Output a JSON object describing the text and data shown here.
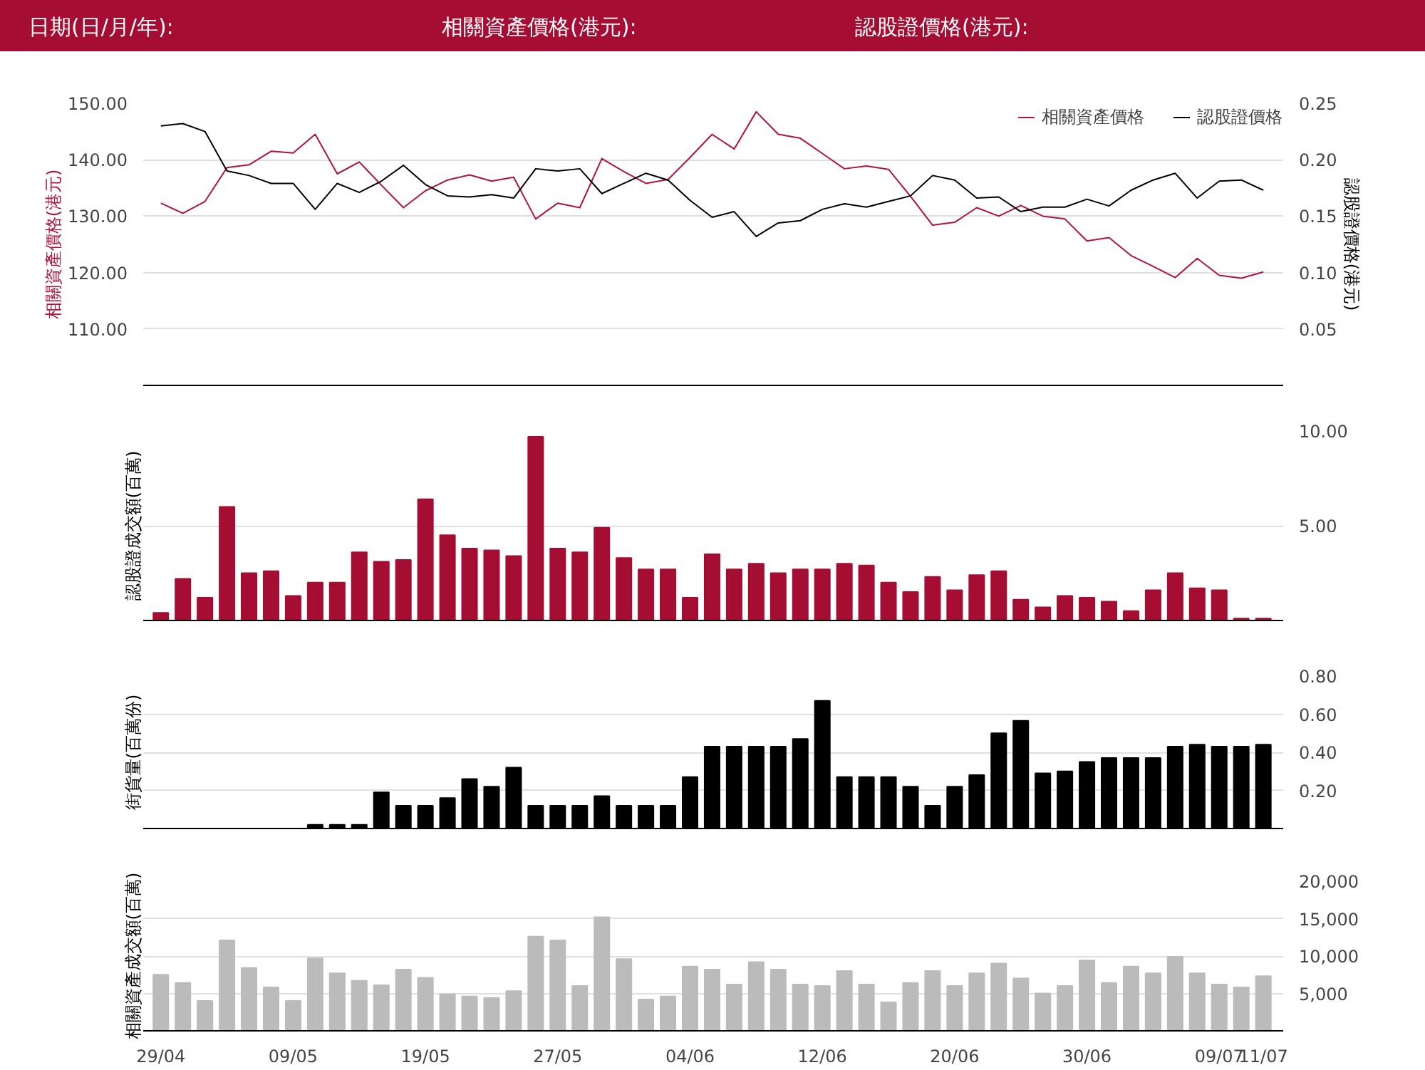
{
  "chart_data": [
    {
      "type": "line",
      "annotations": [
        "日期(日/月/年):",
        "相關資產價格(港元):",
        "認股證價格(港元):"
      ],
      "categories": [
        null,
        null,
        null,
        null,
        null,
        null,
        null,
        null,
        null,
        null,
        null,
        null,
        null,
        null,
        null,
        null,
        null,
        null,
        null,
        null,
        null,
        null,
        null,
        null,
        null,
        null,
        null,
        null,
        null,
        null,
        null,
        null,
        null,
        null,
        null,
        null,
        null,
        null,
        null,
        null,
        null,
        null,
        null,
        null,
        null,
        null,
        null,
        null,
        null,
        null,
        null
      ],
      "ylabel": "相關資產價格(港元)",
      "y2label": "認股證價格(港元)",
      "ylim": [
        100,
        150
      ],
      "yticks": [
        {
          "value": 110,
          "label": "110.00"
        },
        {
          "value": 120,
          "label": "120.00"
        },
        {
          "value": 130,
          "label": "130.00"
        },
        {
          "value": 140,
          "label": "140.00"
        },
        {
          "value": 150,
          "label": "150.00"
        }
      ],
      "y2lim": [
        0.0,
        0.25
      ],
      "y2ticks": [
        {
          "value": 0.05,
          "label": "0.05"
        },
        {
          "value": 0.1,
          "label": "0.10"
        },
        {
          "value": 0.15,
          "label": "0.15"
        },
        {
          "value": 0.2,
          "label": "0.20"
        },
        {
          "value": 0.25,
          "label": "0.25"
        }
      ],
      "grid": "y",
      "legend": "top right",
      "tick_labels": "y",
      "marker": "none",
      "line_style": "solid",
      "series": [
        {
          "name": "相關資產價格",
          "color": "#b0143c",
          "values": [
            132.3,
            130.5,
            132.6,
            138.6,
            139.1,
            141.5,
            141.2,
            144.5,
            137.5,
            139.6,
            135.5,
            131.5,
            134.5,
            136.4,
            137.3,
            136.2,
            136.9,
            129.5,
            132.3,
            131.5,
            140.2,
            137.9,
            135.8,
            136.5,
            140.4,
            144.5,
            141.9,
            148.5,
            144.5,
            143.8,
            141.1,
            138.4,
            138.9,
            138.3,
            133.5,
            128.4,
            128.9,
            131.5,
            130.0,
            131.9,
            130.0,
            129.5,
            125.6,
            126.2,
            123.0,
            121.1,
            119.1,
            122.5,
            119.5,
            119.0,
            120.1
          ]
        },
        {
          "name": "認股證價格",
          "color": "#000000",
          "axis": "y2",
          "values": [
            0.23,
            0.232,
            0.225,
            0.19,
            0.186,
            0.179,
            0.179,
            0.156,
            0.179,
            0.171,
            0.181,
            0.195,
            0.178,
            0.168,
            0.167,
            0.169,
            0.166,
            0.192,
            0.19,
            0.192,
            0.17,
            0.179,
            0.188,
            0.182,
            0.164,
            0.149,
            0.154,
            0.132,
            0.144,
            0.146,
            0.156,
            0.161,
            0.158,
            0.163,
            0.168,
            0.186,
            0.182,
            0.166,
            0.167,
            0.154,
            0.158,
            0.158,
            0.165,
            0.159,
            0.173,
            0.182,
            0.188,
            0.166,
            0.181,
            0.182,
            0.173
          ]
        }
      ]
    },
    {
      "type": "bar",
      "categories": [
        null,
        null,
        null,
        null,
        null,
        null,
        null,
        null,
        null,
        null,
        null,
        null,
        null,
        null,
        null,
        null,
        null,
        null,
        null,
        null,
        null,
        null,
        null,
        null,
        null,
        null,
        null,
        null,
        null,
        null,
        null,
        null,
        null,
        null,
        null,
        null,
        null,
        null,
        null,
        null,
        null,
        null,
        null,
        null,
        null,
        null,
        null,
        null,
        null,
        null,
        null
      ],
      "ylabel": "認股證成交額(百萬)",
      "ylim": [
        0,
        10
      ],
      "yticks": [
        {
          "value": 5,
          "label": "5.00"
        },
        {
          "value": 10,
          "label": "10.00"
        }
      ],
      "grid": "y",
      "tick_labels": "y",
      "color": "#a50d32",
      "values": [
        0.4,
        2.2,
        1.2,
        6.0,
        2.5,
        2.6,
        1.3,
        2.0,
        2.0,
        3.6,
        3.1,
        3.2,
        6.4,
        4.5,
        3.8,
        3.7,
        3.4,
        9.7,
        3.8,
        3.6,
        4.9,
        3.3,
        2.7,
        2.7,
        1.2,
        3.5,
        2.7,
        3.0,
        2.5,
        2.7,
        2.7,
        3.0,
        2.9,
        2.0,
        1.5,
        2.3,
        1.6,
        2.4,
        2.6,
        1.1,
        0.7,
        1.3,
        1.2,
        1.0,
        0.5,
        1.6,
        2.5,
        1.7,
        1.6,
        0.1,
        0.1
      ]
    },
    {
      "type": "bar",
      "categories": [
        null,
        null,
        null,
        null,
        null,
        null,
        null,
        null,
        null,
        null,
        null,
        null,
        null,
        null,
        null,
        null,
        null,
        null,
        null,
        null,
        null,
        null,
        null,
        null,
        null,
        null,
        null,
        null,
        null,
        null,
        null,
        null,
        null,
        null,
        null,
        null,
        null,
        null,
        null,
        null,
        null,
        null,
        null,
        null,
        null,
        null,
        null,
        null,
        null,
        null,
        null
      ],
      "ylabel": "街貨量(百萬份)",
      "ylim": [
        0,
        0.8
      ],
      "yticks": [
        {
          "value": 0.2,
          "label": "0.20"
        },
        {
          "value": 0.4,
          "label": "0.40"
        },
        {
          "value": 0.6,
          "label": "0.60"
        },
        {
          "value": 0.8,
          "label": "0.80"
        }
      ],
      "grid": "y",
      "tick_labels": "y",
      "color": "#000000",
      "values": [
        null,
        null,
        null,
        null,
        null,
        null,
        null,
        0.02,
        0.02,
        0.02,
        0.19,
        0.12,
        0.12,
        0.16,
        0.26,
        0.22,
        0.32,
        0.12,
        0.12,
        0.12,
        0.17,
        0.12,
        0.12,
        0.12,
        0.27,
        0.43,
        0.43,
        0.43,
        0.43,
        0.47,
        0.67,
        0.27,
        0.27,
        0.27,
        0.22,
        0.12,
        0.22,
        0.28,
        0.5,
        0.565,
        0.29,
        0.3,
        0.35,
        0.37,
        0.37,
        0.37,
        0.43,
        0.44,
        0.43,
        0.43,
        0.44
      ]
    },
    {
      "type": "bar",
      "categories": [
        "29/04",
        null,
        null,
        null,
        null,
        null,
        "09/05",
        null,
        null,
        null,
        null,
        null,
        "19/05",
        null,
        null,
        null,
        null,
        null,
        "27/05",
        null,
        null,
        null,
        null,
        null,
        "04/06",
        null,
        null,
        null,
        null,
        null,
        "12/06",
        null,
        null,
        null,
        null,
        null,
        "20/06",
        null,
        null,
        null,
        null,
        null,
        "30/06",
        null,
        null,
        null,
        null,
        null,
        "09/07",
        null,
        "11/07"
      ],
      "ylabel": "相關資產成交額(百萬)",
      "ylim": [
        0,
        20000
      ],
      "yticks": [
        {
          "value": 5000,
          "label": "5,000"
        },
        {
          "value": 10000,
          "label": "10,000"
        },
        {
          "value": 15000,
          "label": "15,000"
        },
        {
          "value": 20000,
          "label": "20,000"
        }
      ],
      "grid": "y",
      "color": "#bbbbbb",
      "values": [
        7500,
        6400,
        4000,
        12100,
        8400,
        5800,
        4000,
        9700,
        7700,
        6700,
        6100,
        8200,
        7100,
        4900,
        4600,
        4400,
        5300,
        12600,
        12100,
        6000,
        15200,
        9600,
        4200,
        4600,
        8600,
        8200,
        6200,
        9200,
        8200,
        6200,
        6000,
        8000,
        6200,
        3800,
        6400,
        8000,
        6000,
        7700,
        9000,
        7000,
        5000,
        6000,
        9400,
        6400,
        8600,
        7700,
        9900,
        7700,
        6200,
        5800,
        7300
      ]
    }
  ]
}
